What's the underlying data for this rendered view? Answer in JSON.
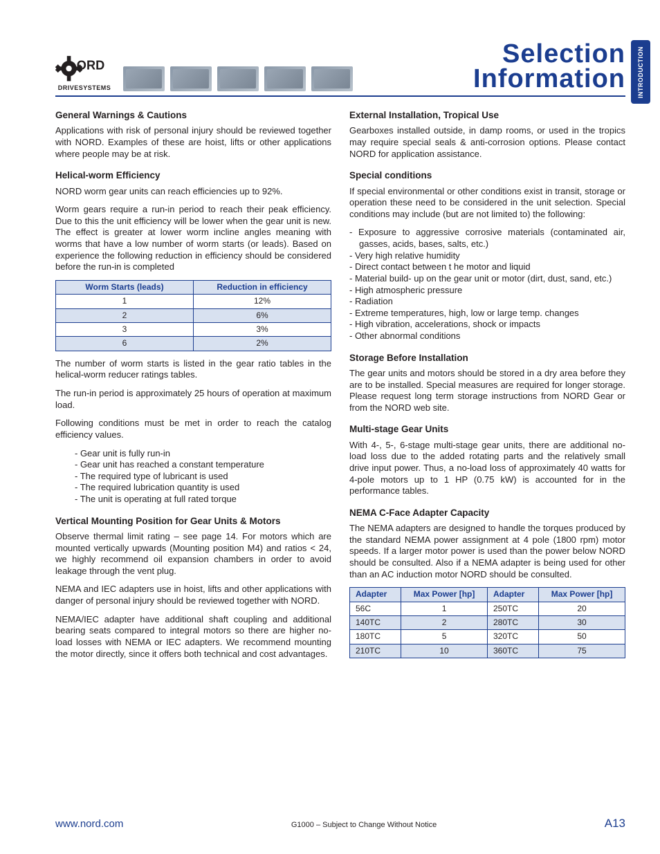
{
  "brand": {
    "name": "NORD",
    "tagline": "DRIVESYSTEMS"
  },
  "page_title": {
    "line1": "Selection",
    "line2": "Information"
  },
  "side_tab": "INTRODUCTION",
  "left": {
    "s1": {
      "h": "General Warnings & Cautions",
      "p1": "Applications with risk of personal injury should be reviewed together with NORD.  Examples of these are hoist, lifts or other applications where people may be at risk."
    },
    "s2": {
      "h": "Helical-worm Efficiency",
      "p1": "NORD worm gear units can reach efficiencies up to 92%.",
      "p2": "Worm gears require a run-in period to reach their peak efficiency.  Due to this the unit efficiency will be lower when the gear unit is new. The effect is greater at lower worm incline angles meaning with worms that have a low number of worm starts (or leads).  Based on experience the following reduction in efficiency should be considered before the run-in is completed",
      "p3": "The number of worm starts is listed in the gear ratio tables in the helical-worm reducer ratings tables.",
      "p4": "The run-in period is approximately 25 hours of operation at maximum load.",
      "p5": "Following conditions must be met in order to reach the catalog efficiency values.",
      "bullets": [
        "- Gear unit is fully run-in",
        "- Gear unit has reached a constant temperature",
        "- The required type of lubricant is used",
        "- The required lubrication quantity is used",
        "- The unit is operating at full rated torque"
      ]
    },
    "s3": {
      "h": "Vertical Mounting Position for Gear Units & Motors",
      "p1": "Observe thermal limit rating – see page 14.  For motors which are mounted vertically upwards (Mounting position  M4) and ratios < 24, we highly recommend oil expansion chambers in order to avoid leakage through the vent plug.",
      "p2": "NEMA and IEC adapters use in hoist, lifts and other applications with danger of personal injury should be reviewed together with NORD.",
      "p3": "NEMA/IEC adapter have additional shaft coupling and additional bearing seats compared to integral motors so there are higher no-load losses with NEMA or IEC adapters.  We recommend mounting the motor directly, since it offers both technical and cost advantages."
    }
  },
  "right": {
    "s4": {
      "h": "External Installation, Tropical Use",
      "p1": "Gearboxes installed outside, in damp rooms, or used in the tropics may require special seals & anti-corrosion options.  Please contact NORD for application assistance."
    },
    "s5": {
      "h": "Special conditions",
      "p1": "If special environmental or other conditions exist in transit, storage or operation these need to be considered in the unit selection.  Special conditions may include (but are not limited to) the following:",
      "items": [
        "-  Exposure to aggressive corrosive materials (contaminated air, gasses, acids, bases, salts, etc.)",
        "-  Very high relative humidity",
        "-  Direct contact between t he motor and liquid",
        "-  Material build- up on the gear unit or motor (dirt, dust, sand, etc.)",
        "-  High atmospheric pressure",
        "-  Radiation",
        "- Extreme temperatures, high, low or large temp. changes",
        "-  High vibration, accelerations, shock or impacts",
        "-  Other abnormal conditions"
      ]
    },
    "s6": {
      "h": "Storage Before Installation",
      "p1": "The gear units and motors should be stored in a dry area before they are to be installed.  Special measures are required for longer storage.  Please request long term storage instructions from NORD Gear or from the NORD web site."
    },
    "s7": {
      "h": "Multi-stage Gear Units",
      "p1": "With 4-, 5-, 6-stage multi-stage gear units, there are additional no-load loss due to the added rotating parts and the relatively small drive input power.  Thus, a no-load loss of approximately 40 watts for 4-pole motors up to 1 HP (0.75 kW) is accounted for in the performance tables."
    },
    "s8": {
      "h": "NEMA C-Face Adapter Capacity",
      "p1": "The NEMA adapters are designed to handle the torques produced by the standard NEMA power assignment at 4 pole (1800 rpm) motor speeds.  If a larger motor power is used than the power below NORD should be consulted.  Also if a NEMA adapter is being used for other than an AC induction motor NORD should be consulted."
    }
  },
  "efficiency_table": {
    "headers": [
      "Worm Starts (leads)",
      "Reduction in efficiency"
    ],
    "rows": [
      {
        "cells": [
          "1",
          "12%"
        ],
        "alt": false
      },
      {
        "cells": [
          "2",
          "6%"
        ],
        "alt": true
      },
      {
        "cells": [
          "3",
          "3%"
        ],
        "alt": false
      },
      {
        "cells": [
          "6",
          "2%"
        ],
        "alt": true
      }
    ],
    "border_color": "#1b3d8f",
    "header_bg": "#d8e1f0",
    "alt_bg": "#d8e1f0"
  },
  "adapter_table": {
    "headers": [
      "Adapter",
      "Max Power [hp]",
      "Adapter",
      "Max Power [hp]"
    ],
    "rows": [
      {
        "cells": [
          "56C",
          "1",
          "250TC",
          "20"
        ],
        "alt": false
      },
      {
        "cells": [
          "140TC",
          "2",
          "280TC",
          "30"
        ],
        "alt": true
      },
      {
        "cells": [
          "180TC",
          "5",
          "320TC",
          "50"
        ],
        "alt": false
      },
      {
        "cells": [
          "210TC",
          "10",
          "360TC",
          "75"
        ],
        "alt": true
      }
    ]
  },
  "footer": {
    "url": "www.nord.com",
    "notice": "G1000 – Subject to Change Without Notice",
    "page": "A13"
  },
  "colors": {
    "brand_blue": "#1b3d8f",
    "text": "#231f20",
    "table_alt": "#d8e1f0",
    "bg": "#ffffff"
  },
  "typography": {
    "body_size_pt": 10,
    "heading_weight": 700,
    "title_font": "Impact"
  }
}
